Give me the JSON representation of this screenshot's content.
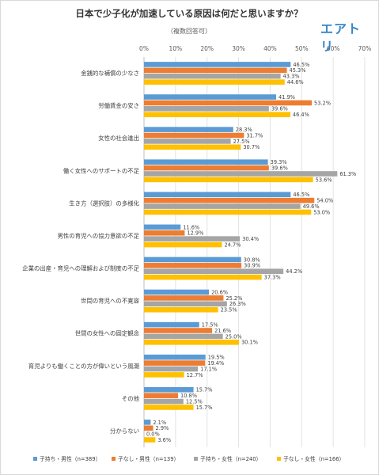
{
  "chart_data": {
    "type": "bar",
    "orientation": "horizontal",
    "title": "日本で少子化が加速している原因は何だと思いますか？",
    "subtitle": "（複数回答可）",
    "xlim": [
      0,
      70
    ],
    "xticks": [
      "0%",
      "10%",
      "20%",
      "30%",
      "40%",
      "50%",
      "60%",
      "70%"
    ],
    "grid": true,
    "legend_position": "bottom",
    "categories": [
      "金銭的な補償の少なさ",
      "労働賃金の安さ",
      "女性の社会進出",
      "働く女性へのサポートの不足",
      "生き方（選択肢）の多様化",
      "男性の育児への協力意欲の不足",
      "企業の出産・育児への理解および制度の不足",
      "世間の育児への不寛容",
      "世間の女性への固定観念",
      "育児よりも働くことの方が偉いという風潮",
      "その他",
      "分からない"
    ],
    "series": [
      {
        "name": "子持ち・男性（n=389）",
        "color": "#5b9bd5",
        "values": [
          46.5,
          41.9,
          28.3,
          39.3,
          46.5,
          11.6,
          30.8,
          20.6,
          17.5,
          19.5,
          15.7,
          2.1
        ]
      },
      {
        "name": "子なし・男性（n=139）",
        "color": "#ed7d31",
        "values": [
          45.3,
          53.2,
          31.7,
          39.6,
          54.0,
          12.9,
          30.9,
          25.2,
          21.6,
          19.4,
          10.8,
          2.9
        ]
      },
      {
        "name": "子持ち・女性（n=240）",
        "color": "#a5a5a5",
        "values": [
          43.3,
          39.6,
          27.5,
          61.3,
          49.6,
          30.4,
          44.2,
          26.3,
          25.0,
          17.1,
          12.5,
          0.0
        ]
      },
      {
        "name": "子なし・女性（n=166）",
        "color": "#ffc000",
        "values": [
          44.6,
          46.4,
          30.7,
          53.6,
          53.0,
          24.7,
          37.3,
          23.5,
          30.1,
          12.7,
          15.7,
          3.6
        ]
      }
    ]
  },
  "brand": {
    "logo_text": "エアトリ",
    "color": "#3a86c8"
  }
}
